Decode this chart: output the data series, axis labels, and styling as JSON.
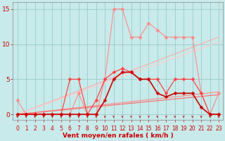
{
  "background_color": "#c8eaea",
  "grid_color": "#99cccc",
  "xlabel": "Vent moyen/en rafales ( km/h )",
  "xlim": [
    -0.5,
    23.5
  ],
  "ylim": [
    -0.8,
    16
  ],
  "yticks": [
    0,
    5,
    10,
    15
  ],
  "xticks": [
    0,
    1,
    2,
    3,
    4,
    5,
    6,
    7,
    8,
    9,
    10,
    11,
    12,
    13,
    14,
    15,
    16,
    17,
    18,
    19,
    20,
    21,
    22,
    23
  ],
  "lines": [
    {
      "name": "light_pink_jagged",
      "x": [
        0,
        1,
        2,
        3,
        4,
        5,
        6,
        7,
        8,
        9,
        10,
        11,
        12,
        13,
        14,
        15,
        16,
        17,
        18,
        19,
        20,
        21,
        22,
        23
      ],
      "y": [
        2,
        0,
        0,
        0,
        0,
        0,
        0,
        3,
        0,
        0,
        5,
        15,
        15,
        11,
        11,
        13,
        12,
        11,
        11,
        11,
        11,
        3,
        0,
        3
      ],
      "color": "#ff8888",
      "lw": 0.8,
      "marker": "D",
      "ms": 2.5,
      "zorder": 3
    },
    {
      "name": "medium_red_jagged",
      "x": [
        0,
        1,
        2,
        3,
        4,
        5,
        6,
        7,
        8,
        9,
        10,
        11,
        12,
        13,
        14,
        15,
        16,
        17,
        18,
        19,
        20,
        21,
        22,
        23
      ],
      "y": [
        0,
        0,
        0,
        0,
        0,
        0,
        5,
        5,
        0,
        2,
        5,
        6,
        6.5,
        6,
        5,
        5,
        5,
        3,
        5,
        5,
        5,
        3,
        0,
        0
      ],
      "color": "#ff4444",
      "lw": 0.9,
      "marker": "D",
      "ms": 2.5,
      "zorder": 4
    },
    {
      "name": "dark_red_smooth",
      "x": [
        0,
        1,
        2,
        3,
        4,
        5,
        6,
        7,
        8,
        9,
        10,
        11,
        12,
        13,
        14,
        15,
        16,
        17,
        18,
        19,
        20,
        21,
        22,
        23
      ],
      "y": [
        0,
        0,
        0,
        0,
        0,
        0,
        0,
        0,
        0,
        0,
        2,
        5,
        6,
        6,
        5,
        5,
        3,
        2.5,
        3,
        3,
        3,
        1,
        0,
        0
      ],
      "color": "#cc0000",
      "lw": 1.2,
      "marker": "D",
      "ms": 2.5,
      "zorder": 5
    },
    {
      "name": "linear_light1",
      "x": [
        0,
        23
      ],
      "y": [
        0,
        11
      ],
      "color": "#ffaaaa",
      "lw": 0.8,
      "marker": null,
      "ms": 0,
      "zorder": 2
    },
    {
      "name": "linear_light2",
      "x": [
        0,
        23
      ],
      "y": [
        0,
        10.3
      ],
      "color": "#ffcccc",
      "lw": 0.8,
      "marker": null,
      "ms": 0,
      "zorder": 2
    },
    {
      "name": "linear_medium",
      "x": [
        0,
        23
      ],
      "y": [
        0,
        3.2
      ],
      "color": "#ff8888",
      "lw": 0.8,
      "marker": null,
      "ms": 0,
      "zorder": 2
    },
    {
      "name": "linear_dark",
      "x": [
        0,
        23
      ],
      "y": [
        0,
        2.8
      ],
      "color": "#ff6666",
      "lw": 0.8,
      "marker": null,
      "ms": 0,
      "zorder": 2
    }
  ],
  "tick_color": "#cc0000",
  "tick_fontsize": 5.5,
  "xlabel_fontsize": 6.5,
  "xlabel_color": "#cc0000",
  "ytick_fontsize": 6.5
}
